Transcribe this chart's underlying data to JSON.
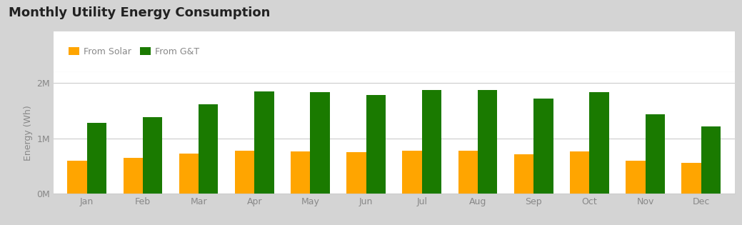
{
  "title": "Monthly Utility Energy Consumption",
  "months": [
    "Jan",
    "Feb",
    "Mar",
    "Apr",
    "May",
    "Jun",
    "Jul",
    "Aug",
    "Sep",
    "Oct",
    "Nov",
    "Dec"
  ],
  "solar": [
    600000,
    640000,
    720000,
    780000,
    760000,
    750000,
    770000,
    780000,
    710000,
    760000,
    590000,
    560000
  ],
  "gt": [
    1280000,
    1380000,
    1620000,
    1850000,
    1830000,
    1790000,
    1870000,
    1870000,
    1720000,
    1840000,
    1430000,
    1210000
  ],
  "solar_color": "#FFA500",
  "gt_color": "#1a7a00",
  "background_outer": "#d4d4d4",
  "background_inner": "#ffffff",
  "ylabel": "Energy (Wh)",
  "ylim": [
    0,
    2200000
  ],
  "yticks": [
    0,
    1000000,
    2000000
  ],
  "ytick_labels": [
    "0M",
    "1M",
    "2M"
  ],
  "grid_color": "#cccccc",
  "title_color": "#222222",
  "axis_label_color": "#888888",
  "tick_color": "#888888",
  "legend_labels": [
    "From Solar",
    "From G&T"
  ],
  "bar_width": 0.35,
  "title_fontsize": 13,
  "legend_fontsize": 9,
  "axis_label_fontsize": 9,
  "tick_fontsize": 9
}
